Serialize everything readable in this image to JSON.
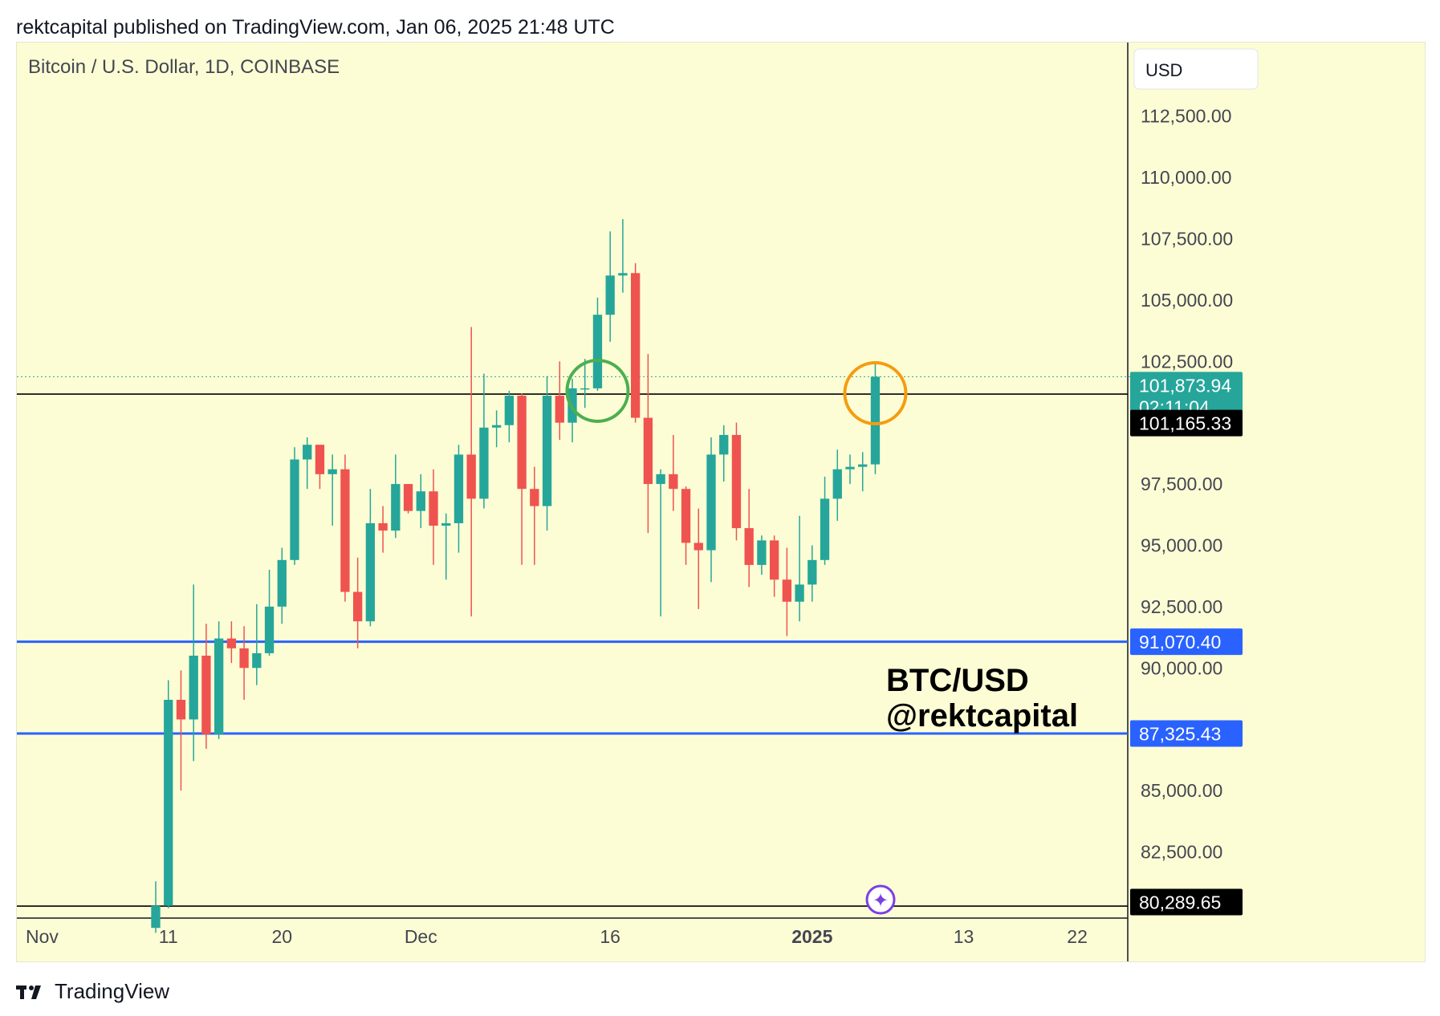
{
  "header": {
    "published_text": "rektcapital published on TradingView.com, Jan 06, 2025 21:48 UTC"
  },
  "footer": {
    "brand": "TradingView"
  },
  "colors": {
    "background": "#ffffff",
    "pane_background": "#fdfdd5",
    "up": "#26a69a",
    "down": "#ef5350",
    "blue_line": "#2962ff",
    "black_line": "#000000",
    "green_circle": "#4caf50",
    "orange_circle": "#f59c11",
    "text": "#131722",
    "axis_text": "#434651",
    "purple_marker": "#7b3fe4"
  },
  "chart_data": {
    "type": "candlestick",
    "title": "Bitcoin / U.S. Dollar, 1D, COINBASE",
    "currency_button": "USD",
    "watermark_line1": "BTC/USD",
    "watermark_line2": "@rektcapital",
    "y_ticks": [
      "112,500.00",
      "110,000.00",
      "107,500.00",
      "105,000.00",
      "102,500.00",
      "97,500.00",
      "95,000.00",
      "92,500.00",
      "90,000.00",
      "85,000.00",
      "82,500.00"
    ],
    "y_tick_values": [
      112500,
      110000,
      107500,
      105000,
      102500,
      97500,
      95000,
      92500,
      90000,
      85000,
      82500
    ],
    "ylim": [
      79800,
      115500
    ],
    "x_ticks": [
      {
        "label": "Nov",
        "bold": false,
        "date": "2024-11-01"
      },
      {
        "label": "11",
        "bold": false,
        "date": "2024-11-11"
      },
      {
        "label": "20",
        "bold": false,
        "date": "2024-11-20"
      },
      {
        "label": "Dec",
        "bold": false,
        "date": "2024-12-01"
      },
      {
        "label": "16",
        "bold": false,
        "date": "2024-12-16"
      },
      {
        "label": "2025",
        "bold": true,
        "date": "2025-01-01"
      },
      {
        "label": "13",
        "bold": false,
        "date": "2025-01-13"
      },
      {
        "label": "22",
        "bold": false,
        "date": "2025-01-22"
      }
    ],
    "x_range": [
      "2024-10-30",
      "2025-01-26"
    ],
    "current_price": {
      "value": 101873.94,
      "label": "101,873.94",
      "countdown": "02:11:04"
    },
    "horizontal_levels": [
      {
        "value": 101165.33,
        "label": "101,165.33",
        "color": "black"
      },
      {
        "value": 91070.4,
        "label": "91,070.40",
        "color": "blue"
      },
      {
        "value": 87325.43,
        "label": "87,325.43",
        "color": "blue"
      },
      {
        "value": 80289.65,
        "label": "80,289.65",
        "color": "black"
      }
    ],
    "annotations": [
      {
        "shape": "circle",
        "color": "green",
        "date": "2024-12-15",
        "value": 101300
      },
      {
        "shape": "circle",
        "color": "orange",
        "date": "2025-01-06",
        "value": 101200
      }
    ],
    "candles": [
      {
        "date": "2024-11-10",
        "open": 79400,
        "high": 81300,
        "low": 79200,
        "close": 80300
      },
      {
        "date": "2024-11-11",
        "open": 80300,
        "high": 89500,
        "low": 80200,
        "close": 88700
      },
      {
        "date": "2024-11-12",
        "open": 88700,
        "high": 89900,
        "low": 85000,
        "close": 87900
      },
      {
        "date": "2024-11-13",
        "open": 87900,
        "high": 93400,
        "low": 86200,
        "close": 90500
      },
      {
        "date": "2024-11-14",
        "open": 90500,
        "high": 91800,
        "low": 86700,
        "close": 87300
      },
      {
        "date": "2024-11-15",
        "open": 87300,
        "high": 91900,
        "low": 87100,
        "close": 91200
      },
      {
        "date": "2024-11-16",
        "open": 91200,
        "high": 91900,
        "low": 90200,
        "close": 90800
      },
      {
        "date": "2024-11-17",
        "open": 90800,
        "high": 91700,
        "low": 88700,
        "close": 90000
      },
      {
        "date": "2024-11-18",
        "open": 90000,
        "high": 92600,
        "low": 89300,
        "close": 90600
      },
      {
        "date": "2024-11-19",
        "open": 90600,
        "high": 94000,
        "low": 90500,
        "close": 92500
      },
      {
        "date": "2024-11-20",
        "open": 92500,
        "high": 94900,
        "low": 91800,
        "close": 94400
      },
      {
        "date": "2024-11-21",
        "open": 94400,
        "high": 99000,
        "low": 94200,
        "close": 98500
      },
      {
        "date": "2024-11-22",
        "open": 98500,
        "high": 99400,
        "low": 97300,
        "close": 99100
      },
      {
        "date": "2024-11-23",
        "open": 99100,
        "high": 99100,
        "low": 97300,
        "close": 97900
      },
      {
        "date": "2024-11-24",
        "open": 97900,
        "high": 98700,
        "low": 95800,
        "close": 98100
      },
      {
        "date": "2024-11-25",
        "open": 98100,
        "high": 98700,
        "low": 92700,
        "close": 93100
      },
      {
        "date": "2024-11-26",
        "open": 93100,
        "high": 94500,
        "low": 90800,
        "close": 91900
      },
      {
        "date": "2024-11-27",
        "open": 91900,
        "high": 97300,
        "low": 91700,
        "close": 95900
      },
      {
        "date": "2024-11-28",
        "open": 95900,
        "high": 96600,
        "low": 94700,
        "close": 95600
      },
      {
        "date": "2024-11-29",
        "open": 95600,
        "high": 98700,
        "low": 95300,
        "close": 97500
      },
      {
        "date": "2024-11-30",
        "open": 97500,
        "high": 97500,
        "low": 96300,
        "close": 96400
      },
      {
        "date": "2024-12-01",
        "open": 96400,
        "high": 97900,
        "low": 95700,
        "close": 97200
      },
      {
        "date": "2024-12-02",
        "open": 97200,
        "high": 98100,
        "low": 94200,
        "close": 95800
      },
      {
        "date": "2024-12-03",
        "open": 95800,
        "high": 96300,
        "low": 93600,
        "close": 95900
      },
      {
        "date": "2024-12-04",
        "open": 95900,
        "high": 99100,
        "low": 94700,
        "close": 98700
      },
      {
        "date": "2024-12-05",
        "open": 98700,
        "high": 103900,
        "low": 92100,
        "close": 96900
      },
      {
        "date": "2024-12-06",
        "open": 96900,
        "high": 102000,
        "low": 96500,
        "close": 99800
      },
      {
        "date": "2024-12-07",
        "open": 99800,
        "high": 100500,
        "low": 99000,
        "close": 99900
      },
      {
        "date": "2024-12-08",
        "open": 99900,
        "high": 101300,
        "low": 99200,
        "close": 101100
      },
      {
        "date": "2024-12-09",
        "open": 101100,
        "high": 101200,
        "low": 94200,
        "close": 97300
      },
      {
        "date": "2024-12-10",
        "open": 97300,
        "high": 98200,
        "low": 94200,
        "close": 96600
      },
      {
        "date": "2024-12-11",
        "open": 96600,
        "high": 101900,
        "low": 95600,
        "close": 101100
      },
      {
        "date": "2024-12-12",
        "open": 101100,
        "high": 102500,
        "low": 99300,
        "close": 100000
      },
      {
        "date": "2024-12-13",
        "open": 100000,
        "high": 101800,
        "low": 99200,
        "close": 101400
      },
      {
        "date": "2024-12-14",
        "open": 101400,
        "high": 102600,
        "low": 100600,
        "close": 101400
      },
      {
        "date": "2024-12-15",
        "open": 101400,
        "high": 105100,
        "low": 101300,
        "close": 104400
      },
      {
        "date": "2024-12-16",
        "open": 104400,
        "high": 107800,
        "low": 103300,
        "close": 106000
      },
      {
        "date": "2024-12-17",
        "open": 106000,
        "high": 108300,
        "low": 105300,
        "close": 106100
      },
      {
        "date": "2024-12-18",
        "open": 106100,
        "high": 106500,
        "low": 100000,
        "close": 100200
      },
      {
        "date": "2024-12-19",
        "open": 100200,
        "high": 102800,
        "low": 95500,
        "close": 97500
      },
      {
        "date": "2024-12-20",
        "open": 97500,
        "high": 98100,
        "low": 92100,
        "close": 97900
      },
      {
        "date": "2024-12-21",
        "open": 97900,
        "high": 99500,
        "low": 96400,
        "close": 97300
      },
      {
        "date": "2024-12-22",
        "open": 97300,
        "high": 97400,
        "low": 94200,
        "close": 95100
      },
      {
        "date": "2024-12-23",
        "open": 95100,
        "high": 96500,
        "low": 92400,
        "close": 94800
      },
      {
        "date": "2024-12-24",
        "open": 94800,
        "high": 99400,
        "low": 93500,
        "close": 98700
      },
      {
        "date": "2024-12-25",
        "open": 98700,
        "high": 99900,
        "low": 97600,
        "close": 99500
      },
      {
        "date": "2024-12-26",
        "open": 99500,
        "high": 100000,
        "low": 95200,
        "close": 95700
      },
      {
        "date": "2024-12-27",
        "open": 95700,
        "high": 97300,
        "low": 93300,
        "close": 94200
      },
      {
        "date": "2024-12-28",
        "open": 94200,
        "high": 95400,
        "low": 93800,
        "close": 95200
      },
      {
        "date": "2024-12-29",
        "open": 95200,
        "high": 95400,
        "low": 92900,
        "close": 93600
      },
      {
        "date": "2024-12-30",
        "open": 93600,
        "high": 94900,
        "low": 91300,
        "close": 92700
      },
      {
        "date": "2024-12-31",
        "open": 92700,
        "high": 96200,
        "low": 91900,
        "close": 93400
      },
      {
        "date": "2025-01-01",
        "open": 93400,
        "high": 95000,
        "low": 92700,
        "close": 94400
      },
      {
        "date": "2025-01-02",
        "open": 94400,
        "high": 97800,
        "low": 94200,
        "close": 96900
      },
      {
        "date": "2025-01-03",
        "open": 96900,
        "high": 98900,
        "low": 96000,
        "close": 98100
      },
      {
        "date": "2025-01-04",
        "open": 98100,
        "high": 98700,
        "low": 97500,
        "close": 98200
      },
      {
        "date": "2025-01-05",
        "open": 98200,
        "high": 98800,
        "low": 97200,
        "close": 98300
      },
      {
        "date": "2025-01-06",
        "open": 98300,
        "high": 102500,
        "low": 97900,
        "close": 101873.94
      }
    ]
  }
}
